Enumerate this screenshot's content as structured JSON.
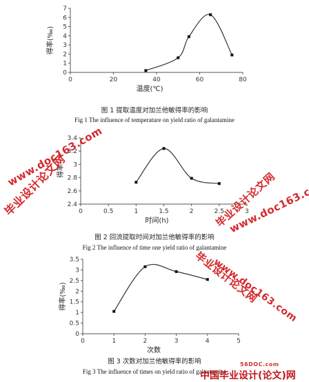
{
  "chart_data": [
    {
      "type": "line",
      "title": "图 1 提取温度对加兰他敏得率的影响",
      "subtitle": "Fig 1 The influence of temperature on yield ratio of galantamine",
      "xlabel": "温度(℃)",
      "ylabel": "得率(‰)",
      "xlim": [
        0,
        80
      ],
      "ylim": [
        0,
        7
      ],
      "xticks": [
        "0",
        "20",
        "40",
        "60",
        "80"
      ],
      "yticks": [
        "0",
        "1",
        "2",
        "3",
        "4",
        "5",
        "6",
        "7"
      ],
      "x": [
        35,
        50,
        55,
        65,
        75
      ],
      "values": [
        0.2,
        1.6,
        3.9,
        6.3,
        1.9
      ],
      "grid": false,
      "smooth": true
    },
    {
      "type": "line",
      "title": "图 2 回流提取时间对加兰他敏得率的影响",
      "subtitle": "Fig 2 The influence of time one yield ratio of galantamine",
      "xlabel": "时间(h)",
      "ylabel": "得率",
      "xlim": [
        0,
        3
      ],
      "ylim": [
        2.4,
        3.4
      ],
      "xticks": [
        "0",
        "0.5",
        "1",
        "1.5",
        "2",
        "2.5",
        "3"
      ],
      "yticks": [
        "2.4",
        "2.6",
        "2.8",
        "3",
        "3.2",
        "3.4"
      ],
      "x": [
        1,
        1.5,
        2,
        2.5
      ],
      "values": [
        2.73,
        3.24,
        2.79,
        2.71
      ],
      "grid": false,
      "smooth": true
    },
    {
      "type": "line",
      "title": "图 3 次数对加兰他敏得率的影响",
      "subtitle": "Fig 3 The influence of times on yield ratio of galantamine",
      "xlabel": "次数",
      "ylabel": "得率(‰)",
      "xlim": [
        0,
        5
      ],
      "ylim": [
        0,
        3.5
      ],
      "xticks": [
        "0",
        "1",
        "2",
        "3",
        "4",
        "5"
      ],
      "yticks": [
        "0",
        "0.5",
        "1",
        "1.5",
        "2",
        "2.5",
        "3",
        "3.5"
      ],
      "x": [
        1,
        2,
        3,
        4
      ],
      "values": [
        1.05,
        3.15,
        2.92,
        2.55
      ],
      "grid": false,
      "smooth": true
    }
  ],
  "watermarks": [
    {
      "text": "www.doc163.com"
    },
    {
      "text": "毕业设计论文网"
    },
    {
      "text": "毕业设计论文网"
    },
    {
      "text": "www.doc163.com"
    },
    {
      "text": "毕业设计论文网"
    },
    {
      "text": "www.doc163.com"
    }
  ],
  "footer": {
    "site": "56DOC.com",
    "brand": "中国毕业设计(论文)网"
  },
  "colors": {
    "line": "#333333",
    "axis": "#555555",
    "watermark": "#d0191d"
  }
}
